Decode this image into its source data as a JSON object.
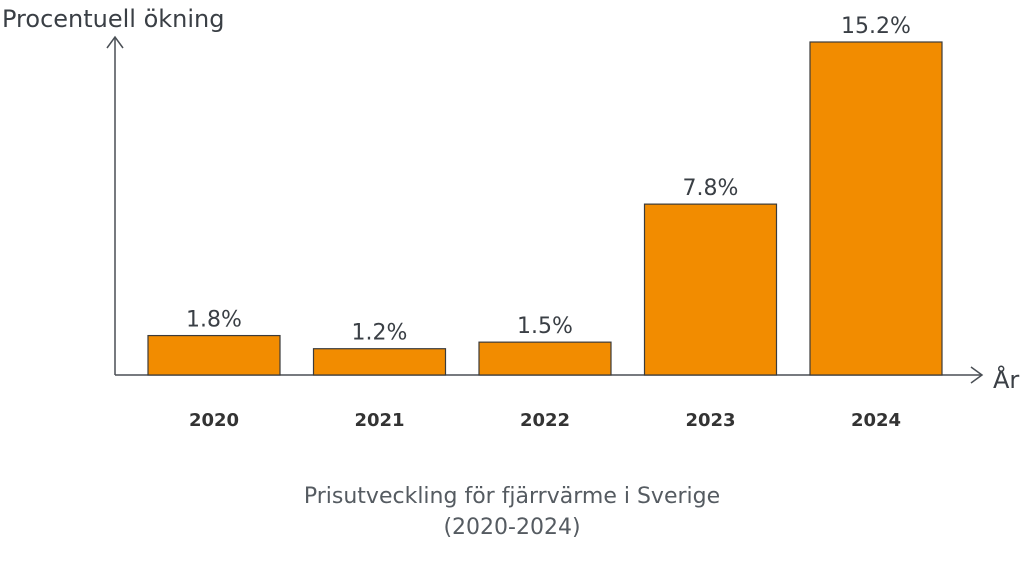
{
  "chart_data": {
    "type": "bar",
    "categories": [
      "2020",
      "2021",
      "2022",
      "2023",
      "2024"
    ],
    "values": [
      1.8,
      1.2,
      1.5,
      7.8,
      15.2
    ],
    "value_labels": [
      "1.8%",
      "1.2%",
      "1.5%",
      "7.8%",
      "15.2%"
    ],
    "ylabel": "Procentuell ökning",
    "xlabel": "År",
    "ylim": [
      0,
      15.2
    ],
    "grid": false,
    "title": "Prisutveckling för fjärrvärme i Sverige",
    "subtitle": "(2020-2024)"
  },
  "colors": {
    "bar": "#F28C00",
    "bar_stroke": "#3b3b3b",
    "axis": "#4a4f55"
  }
}
